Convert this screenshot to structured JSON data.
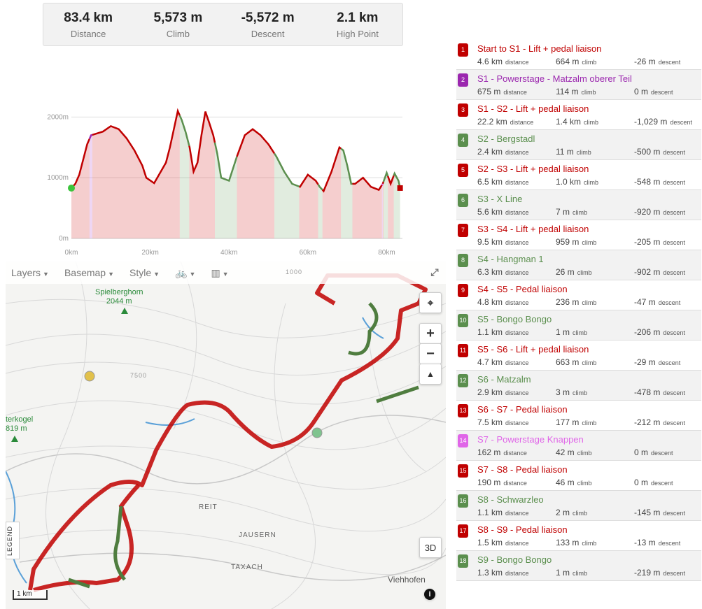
{
  "stats": [
    {
      "value": "83.4 km",
      "label": "Distance"
    },
    {
      "value": "5,573 m",
      "label": "Climb"
    },
    {
      "value": "-5,572 m",
      "label": "Descent"
    },
    {
      "value": "2.1 km",
      "label": "High Point"
    }
  ],
  "chart_data": {
    "type": "area",
    "ylim": [
      0,
      2200
    ],
    "xlim": [
      0,
      84
    ],
    "y_ticks": [
      "2000m",
      "1000m",
      "0m"
    ],
    "x_ticks": [
      "0km",
      "20km",
      "40km",
      "60km",
      "80km"
    ],
    "elevation": [
      [
        0,
        830
      ],
      [
        1,
        900
      ],
      [
        2,
        1050
      ],
      [
        3,
        1300
      ],
      [
        4,
        1550
      ],
      [
        5,
        1700
      ],
      [
        6,
        1720
      ],
      [
        8,
        1760
      ],
      [
        10,
        1850
      ],
      [
        12,
        1800
      ],
      [
        14,
        1650
      ],
      [
        16,
        1450
      ],
      [
        18,
        1200
      ],
      [
        19,
        1000
      ],
      [
        21,
        910
      ],
      [
        24,
        1250
      ],
      [
        25,
        1500
      ],
      [
        26,
        1800
      ],
      [
        27,
        2100
      ],
      [
        28,
        1950
      ],
      [
        29,
        1750
      ],
      [
        30,
        1500
      ],
      [
        31,
        1100
      ],
      [
        32,
        1250
      ],
      [
        33,
        1700
      ],
      [
        34,
        2090
      ],
      [
        35,
        1900
      ],
      [
        36,
        1700
      ],
      [
        37,
        1400
      ],
      [
        38,
        1000
      ],
      [
        40,
        950
      ],
      [
        42,
        1350
      ],
      [
        44,
        1700
      ],
      [
        46,
        1800
      ],
      [
        48,
        1700
      ],
      [
        50,
        1550
      ],
      [
        52,
        1350
      ],
      [
        54,
        1100
      ],
      [
        56,
        900
      ],
      [
        58,
        850
      ],
      [
        60,
        1050
      ],
      [
        61,
        1000
      ],
      [
        62,
        950
      ],
      [
        63,
        850
      ],
      [
        64,
        780
      ],
      [
        66,
        1100
      ],
      [
        67,
        1300
      ],
      [
        68,
        1500
      ],
      [
        69,
        1450
      ],
      [
        70,
        1200
      ],
      [
        71,
        900
      ],
      [
        72,
        900
      ],
      [
        74,
        1000
      ],
      [
        76,
        850
      ],
      [
        78,
        800
      ],
      [
        79,
        900
      ],
      [
        80,
        1080
      ],
      [
        81,
        900
      ],
      [
        82,
        1070
      ],
      [
        83,
        950
      ],
      [
        83.4,
        830
      ]
    ],
    "segment_colors": [
      "#c00000",
      "#9b27af",
      "#c00000",
      "#5b8f4e",
      "#c00000",
      "#5b8f4e",
      "#c00000",
      "#5b8f4e",
      "#c00000",
      "#5b8f4e",
      "#c00000",
      "#5b8f4e",
      "#c00000",
      "#e066e8",
      "#c00000",
      "#5b8f4e",
      "#c00000",
      "#5b8f4e"
    ],
    "segment_ends": [
      4.6,
      5.3,
      27.5,
      29.9,
      36.4,
      42.0,
      51.5,
      57.8,
      62.6,
      63.7,
      68.4,
      71.3,
      78.8,
      79.0,
      79.2,
      80.3,
      81.8,
      83.4
    ]
  },
  "map": {
    "toolbar": [
      {
        "label": "Layers"
      },
      {
        "label": "Basemap"
      },
      {
        "label": "Style"
      }
    ],
    "peak": {
      "name": "Spielberghorn",
      "elev": "2044 m"
    },
    "peak2": {
      "name": "terkogel",
      "elev": "819 m"
    },
    "places": [
      "REIT",
      "JAUSERN",
      "TAXACH",
      "Viehhofen"
    ],
    "contour_labels": [
      "7500",
      "1000"
    ],
    "scale": "1 km",
    "legend": "LEGEND",
    "three_d": "3D",
    "info": "i",
    "zoom_in": "+",
    "zoom_out": "−",
    "north": "▲"
  },
  "segments": [
    {
      "n": "1",
      "name": "Start to S1 - Lift + pedal liaison",
      "color": "#c00000",
      "dist": "4.6 km",
      "climb": "664 m",
      "descent": "-26 m"
    },
    {
      "n": "2",
      "name": "S1 - Powerstage - Matzalm oberer Teil",
      "color": "#9b27af",
      "dist": "675 m",
      "climb": "114 m",
      "descent": "0 m"
    },
    {
      "n": "3",
      "name": "S1 - S2 - Lift + pedal liaison",
      "color": "#c00000",
      "dist": "22.2 km",
      "climb": "1.4 km",
      "descent": "-1,029 m"
    },
    {
      "n": "4",
      "name": "S2 - Bergstadl",
      "color": "#5b8f4e",
      "dist": "2.4 km",
      "climb": "11 m",
      "descent": "-500 m"
    },
    {
      "n": "5",
      "name": "S2 - S3 - Lift + pedal liaison",
      "color": "#c00000",
      "dist": "6.5 km",
      "climb": "1.0 km",
      "descent": "-548 m"
    },
    {
      "n": "6",
      "name": "S3 - X Line",
      "color": "#5b8f4e",
      "dist": "5.6 km",
      "climb": "7 m",
      "descent": "-920 m"
    },
    {
      "n": "7",
      "name": "S3 - S4 - Lift + pedal liaison",
      "color": "#c00000",
      "dist": "9.5 km",
      "climb": "959 m",
      "descent": "-205 m"
    },
    {
      "n": "8",
      "name": "S4 - Hangman 1",
      "color": "#5b8f4e",
      "dist": "6.3 km",
      "climb": "26 m",
      "descent": "-902 m"
    },
    {
      "n": "9",
      "name": "S4 - S5 - Pedal liaison",
      "color": "#c00000",
      "dist": "4.8 km",
      "climb": "236 m",
      "descent": "-47 m"
    },
    {
      "n": "10",
      "name": "S5 - Bongo Bongo",
      "color": "#5b8f4e",
      "dist": "1.1 km",
      "climb": "1 m",
      "descent": "-206 m"
    },
    {
      "n": "11",
      "name": "S5 - S6 - Lift + pedal liaison",
      "color": "#c00000",
      "dist": "4.7 km",
      "climb": "663 m",
      "descent": "-29 m"
    },
    {
      "n": "12",
      "name": "S6 - Matzalm",
      "color": "#5b8f4e",
      "dist": "2.9 km",
      "climb": "3 m",
      "descent": "-478 m"
    },
    {
      "n": "13",
      "name": "S6 - S7 - Pedal liaison",
      "color": "#c00000",
      "dist": "7.5 km",
      "climb": "177 m",
      "descent": "-212 m"
    },
    {
      "n": "14",
      "name": "S7 - Powerstage Knappen",
      "color": "#e066e8",
      "dist": "162 m",
      "climb": "42 m",
      "descent": "0 m"
    },
    {
      "n": "15",
      "name": "S7 - S8 - Pedal liaison",
      "color": "#c00000",
      "dist": "190 m",
      "climb": "46 m",
      "descent": "0 m"
    },
    {
      "n": "16",
      "name": "S8 - Schwarzleo",
      "color": "#5b8f4e",
      "dist": "1.1 km",
      "climb": "2 m",
      "descent": "-145 m"
    },
    {
      "n": "17",
      "name": "S8 - S9 - Pedal liaison",
      "color": "#c00000",
      "dist": "1.5 km",
      "climb": "133 m",
      "descent": "-13 m"
    },
    {
      "n": "18",
      "name": "S9 - Bongo Bongo",
      "color": "#5b8f4e",
      "dist": "1.3 km",
      "climb": "1 m",
      "descent": "-219 m"
    }
  ],
  "units": {
    "distance": "distance",
    "climb": "climb",
    "descent": "descent"
  }
}
